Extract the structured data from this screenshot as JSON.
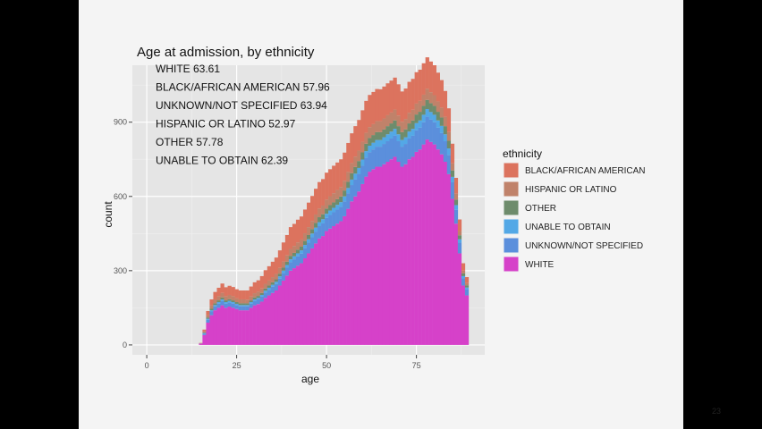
{
  "slide": {
    "page_number": "23"
  },
  "chart_data": {
    "type": "bar",
    "stacked": true,
    "histogram": true,
    "title": "Age at admission, by ethnicity",
    "xlabel": "age",
    "ylabel": "count",
    "xlim": [
      -4,
      94
    ],
    "ylim": [
      -40,
      1130
    ],
    "x_ticks": [
      0,
      25,
      50,
      75
    ],
    "y_ticks": [
      0,
      300,
      600,
      900
    ],
    "grid": true,
    "legend_placement": "right",
    "legend_title": "ethnicity",
    "annotations": [
      "WHITE 63.61",
      "BLACK/AFRICAN AMERICAN 57.96",
      "UNKNOWN/NOT SPECIFIED 63.94",
      "HISPANIC OR LATINO 52.97",
      "OTHER 57.78",
      "UNABLE TO OBTAIN 62.39"
    ],
    "x": [
      15,
      16,
      17,
      18,
      19,
      20,
      21,
      22,
      23,
      24,
      25,
      26,
      27,
      28,
      29,
      30,
      31,
      32,
      33,
      34,
      35,
      36,
      37,
      38,
      39,
      40,
      41,
      42,
      43,
      44,
      45,
      46,
      47,
      48,
      49,
      50,
      51,
      52,
      53,
      54,
      55,
      56,
      57,
      58,
      59,
      60,
      61,
      62,
      63,
      64,
      65,
      66,
      67,
      68,
      69,
      70,
      71,
      72,
      73,
      74,
      75,
      76,
      77,
      78,
      79,
      80,
      81,
      82,
      83,
      84,
      85,
      86,
      87,
      88,
      89
    ],
    "series": [
      {
        "name": "WHITE",
        "color": "#d641c9",
        "values": [
          5,
          40,
          90,
          120,
          140,
          150,
          160,
          150,
          155,
          150,
          145,
          140,
          140,
          140,
          150,
          160,
          165,
          175,
          190,
          200,
          210,
          220,
          240,
          260,
          280,
          300,
          310,
          320,
          330,
          350,
          370,
          390,
          410,
          430,
          440,
          460,
          470,
          480,
          490,
          500,
          520,
          550,
          580,
          600,
          620,
          650,
          680,
          700,
          710,
          720,
          720,
          730,
          740,
          750,
          760,
          740,
          720,
          730,
          750,
          760,
          780,
          790,
          810,
          830,
          820,
          810,
          790,
          770,
          740,
          690,
          590,
          490,
          370,
          240,
          200
        ]
      },
      {
        "name": "UNKNOWN/NOT SPECIFIED",
        "color": "#5b8fdc",
        "values": [
          1,
          6,
          12,
          15,
          16,
          17,
          18,
          17,
          17,
          17,
          16,
          16,
          16,
          16,
          17,
          18,
          19,
          20,
          22,
          23,
          25,
          26,
          28,
          30,
          32,
          35,
          36,
          38,
          39,
          41,
          43,
          45,
          48,
          50,
          51,
          53,
          55,
          56,
          57,
          58,
          60,
          63,
          66,
          69,
          71,
          74,
          77,
          79,
          80,
          81,
          81,
          82,
          83,
          84,
          85,
          83,
          81,
          82,
          84,
          85,
          87,
          88,
          90,
          92,
          91,
          90,
          88,
          86,
          83,
          78,
          67,
          56,
          43,
          29,
          24
        ]
      },
      {
        "name": "UNABLE TO OBTAIN",
        "color": "#53a8e6",
        "values": [
          0,
          2,
          4,
          5,
          5,
          6,
          6,
          6,
          6,
          6,
          5,
          5,
          5,
          5,
          6,
          6,
          6,
          7,
          7,
          8,
          8,
          9,
          9,
          10,
          11,
          11,
          12,
          12,
          13,
          13,
          14,
          15,
          16,
          16,
          17,
          17,
          18,
          18,
          19,
          19,
          20,
          21,
          22,
          23,
          24,
          25,
          26,
          26,
          27,
          27,
          27,
          27,
          28,
          28,
          28,
          28,
          27,
          27,
          28,
          28,
          29,
          29,
          30,
          31,
          30,
          30,
          29,
          29,
          28,
          26,
          22,
          19,
          14,
          9,
          8
        ]
      },
      {
        "name": "OTHER",
        "color": "#6e8c6c",
        "values": [
          0,
          2,
          5,
          6,
          7,
          7,
          8,
          7,
          7,
          7,
          7,
          7,
          7,
          7,
          7,
          8,
          8,
          8,
          9,
          9,
          10,
          10,
          11,
          12,
          13,
          14,
          14,
          15,
          15,
          16,
          17,
          18,
          19,
          20,
          20,
          21,
          22,
          22,
          23,
          23,
          24,
          25,
          26,
          27,
          28,
          29,
          30,
          31,
          31,
          32,
          32,
          32,
          33,
          33,
          34,
          33,
          32,
          32,
          33,
          34,
          35,
          35,
          36,
          37,
          36,
          36,
          35,
          34,
          33,
          31,
          26,
          22,
          16,
          11,
          9
        ]
      },
      {
        "name": "HISPANIC OR LATINO",
        "color": "#c0826a",
        "values": [
          1,
          5,
          10,
          14,
          16,
          17,
          18,
          17,
          17,
          17,
          16,
          16,
          16,
          15,
          16,
          17,
          17,
          18,
          19,
          20,
          21,
          22,
          23,
          25,
          26,
          28,
          28,
          29,
          29,
          31,
          32,
          33,
          34,
          35,
          35,
          36,
          36,
          37,
          37,
          38,
          39,
          40,
          41,
          42,
          42,
          43,
          44,
          44,
          44,
          44,
          44,
          44,
          44,
          44,
          44,
          43,
          42,
          42,
          43,
          43,
          44,
          44,
          45,
          45,
          44,
          43,
          42,
          40,
          38,
          35,
          29,
          24,
          17,
          11,
          9
        ]
      },
      {
        "name": "BLACK/AFRICAN AMERICAN",
        "color": "#dc735e",
        "values": [
          1,
          7,
          16,
          24,
          30,
          34,
          38,
          36,
          37,
          37,
          36,
          36,
          36,
          37,
          40,
          44,
          46,
          50,
          55,
          58,
          62,
          66,
          71,
          77,
          82,
          88,
          89,
          92,
          93,
          96,
          99,
          101,
          104,
          107,
          107,
          109,
          109,
          111,
          111,
          112,
          114,
          117,
          120,
          123,
          124,
          127,
          129,
          130,
          130,
          130,
          129,
          129,
          129,
          129,
          129,
          126,
          122,
          123,
          125,
          125,
          127,
          126,
          127,
          127,
          124,
          121,
          116,
          111,
          104,
          96,
          79,
          64,
          47,
          30,
          24
        ]
      }
    ]
  }
}
